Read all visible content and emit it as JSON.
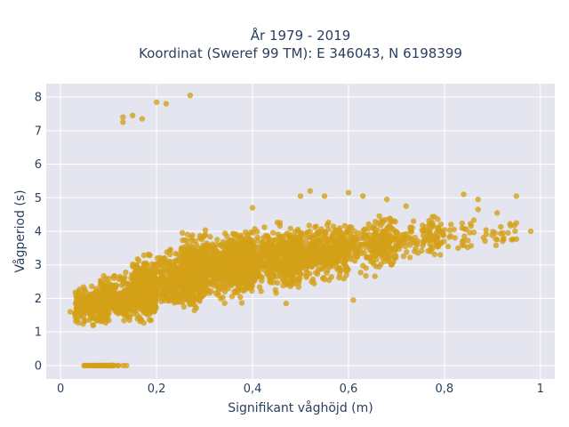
{
  "chart_data": {
    "type": "scatter",
    "title_line1": "År 1979 - 2019",
    "title_line2": "Koordinat (Sweref 99 TM): E 346043, N 6198399",
    "xlabel": "Signifikant våghöjd (m)",
    "ylabel": "Vågperiod (s)",
    "xlim": [
      -0.03,
      1.03
    ],
    "ylim": [
      -0.4,
      8.4
    ],
    "x_ticks": [
      {
        "value": 0,
        "label": "0"
      },
      {
        "value": 0.2,
        "label": "0,2"
      },
      {
        "value": 0.4,
        "label": "0,4"
      },
      {
        "value": 0.6,
        "label": "0,6"
      },
      {
        "value": 0.8,
        "label": "0,8"
      },
      {
        "value": 1.0,
        "label": "1"
      }
    ],
    "y_ticks": [
      {
        "value": 0,
        "label": "0"
      },
      {
        "value": 1,
        "label": "1"
      },
      {
        "value": 2,
        "label": "2"
      },
      {
        "value": 3,
        "label": "3"
      },
      {
        "value": 4,
        "label": "4"
      },
      {
        "value": 5,
        "label": "5"
      },
      {
        "value": 6,
        "label": "6"
      },
      {
        "value": 7,
        "label": "7"
      },
      {
        "value": 8,
        "label": "8"
      }
    ],
    "grid": true,
    "marker_color": "#d4a017",
    "plot_bg": "#e5e5ef",
    "gridline_color": "#ffffff",
    "point_clusters": [
      {
        "x": [
          0.04,
          0.14
        ],
        "y": [
          0.0,
          0.0
        ],
        "n": 40
      },
      {
        "x": [
          0.03,
          0.1
        ],
        "y": [
          1.1,
          2.5
        ],
        "n": 260
      },
      {
        "x": [
          0.08,
          0.2
        ],
        "y": [
          1.1,
          2.9
        ],
        "n": 420
      },
      {
        "x": [
          0.15,
          0.3
        ],
        "y": [
          1.4,
          3.6
        ],
        "n": 600
      },
      {
        "x": [
          0.25,
          0.4
        ],
        "y": [
          1.7,
          4.2
        ],
        "n": 700
      },
      {
        "x": [
          0.35,
          0.5
        ],
        "y": [
          2.0,
          4.3
        ],
        "n": 600
      },
      {
        "x": [
          0.45,
          0.6
        ],
        "y": [
          2.3,
          4.4
        ],
        "n": 450
      },
      {
        "x": [
          0.55,
          0.7
        ],
        "y": [
          2.6,
          4.5
        ],
        "n": 280
      },
      {
        "x": [
          0.65,
          0.8
        ],
        "y": [
          2.9,
          4.6
        ],
        "n": 160
      },
      {
        "x": [
          0.75,
          0.95
        ],
        "y": [
          3.2,
          4.7
        ],
        "n": 70
      }
    ],
    "scattered_points": [
      {
        "x": 0.02,
        "y": 1.6
      },
      {
        "x": 0.03,
        "y": 1.55
      },
      {
        "x": 0.13,
        "y": 7.4
      },
      {
        "x": 0.13,
        "y": 7.25
      },
      {
        "x": 0.15,
        "y": 7.45
      },
      {
        "x": 0.17,
        "y": 7.35
      },
      {
        "x": 0.2,
        "y": 7.85
      },
      {
        "x": 0.22,
        "y": 7.8
      },
      {
        "x": 0.27,
        "y": 8.05
      },
      {
        "x": 0.4,
        "y": 4.7
      },
      {
        "x": 0.5,
        "y": 5.05
      },
      {
        "x": 0.52,
        "y": 5.2
      },
      {
        "x": 0.55,
        "y": 5.05
      },
      {
        "x": 0.6,
        "y": 5.15
      },
      {
        "x": 0.63,
        "y": 5.05
      },
      {
        "x": 0.68,
        "y": 4.95
      },
      {
        "x": 0.72,
        "y": 4.75
      },
      {
        "x": 0.84,
        "y": 5.1
      },
      {
        "x": 0.87,
        "y": 4.95
      },
      {
        "x": 0.95,
        "y": 5.05
      },
      {
        "x": 0.87,
        "y": 4.65
      },
      {
        "x": 0.91,
        "y": 4.55
      },
      {
        "x": 0.95,
        "y": 4.25
      },
      {
        "x": 0.98,
        "y": 4.0
      },
      {
        "x": 0.94,
        "y": 3.75
      },
      {
        "x": 0.61,
        "y": 1.95
      },
      {
        "x": 0.47,
        "y": 1.85
      }
    ]
  }
}
